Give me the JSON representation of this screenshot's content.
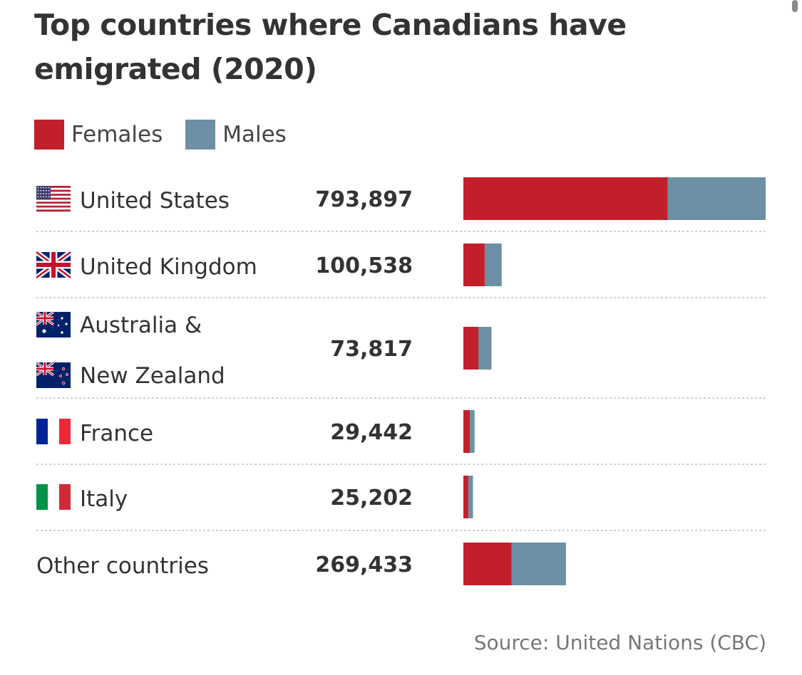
{
  "title": "Top countries where Canadians have emigrated (2020)",
  "source": "Source: United Nations (CBC)",
  "colors": {
    "females": "#c1202b",
    "males": "#6d8fa3"
  },
  "legend": [
    {
      "label": "Females",
      "color": "#c1202b"
    },
    {
      "label": "Males",
      "color": "#6d8fa3"
    }
  ],
  "chart_data": {
    "type": "bar",
    "orientation": "horizontal",
    "stacked": true,
    "categories": [
      "United States",
      "United Kingdom",
      "Australia & New Zealand",
      "France",
      "Italy",
      "Other countries"
    ],
    "totals_labels": [
      "793,897",
      "100,538",
      "73,817",
      "29,442",
      "25,202",
      "269,433"
    ],
    "totals": [
      793897,
      100538,
      73817,
      29442,
      25202,
      269433
    ],
    "series": [
      {
        "name": "Females",
        "values": [
          537000,
          56000,
          40000,
          17000,
          13000,
          127000
        ]
      },
      {
        "name": "Males",
        "values": [
          256897,
          44538,
          33817,
          12442,
          12202,
          142433
        ]
      }
    ],
    "xlim": [
      0,
      793897
    ],
    "rows": [
      {
        "label_lines": [
          "United States"
        ],
        "flags": [
          "us-flag-icon"
        ]
      },
      {
        "label_lines": [
          "United Kingdom"
        ],
        "flags": [
          "uk-flag-icon"
        ]
      },
      {
        "label_lines": [
          "Australia &",
          "New Zealand"
        ],
        "flags": [
          "australia-flag-icon",
          "new-zealand-flag-icon"
        ]
      },
      {
        "label_lines": [
          "France"
        ],
        "flags": [
          "france-flag-icon"
        ]
      },
      {
        "label_lines": [
          "Italy"
        ],
        "flags": [
          "italy-flag-icon"
        ]
      },
      {
        "label_lines": [
          "Other countries"
        ],
        "flags": []
      }
    ]
  }
}
